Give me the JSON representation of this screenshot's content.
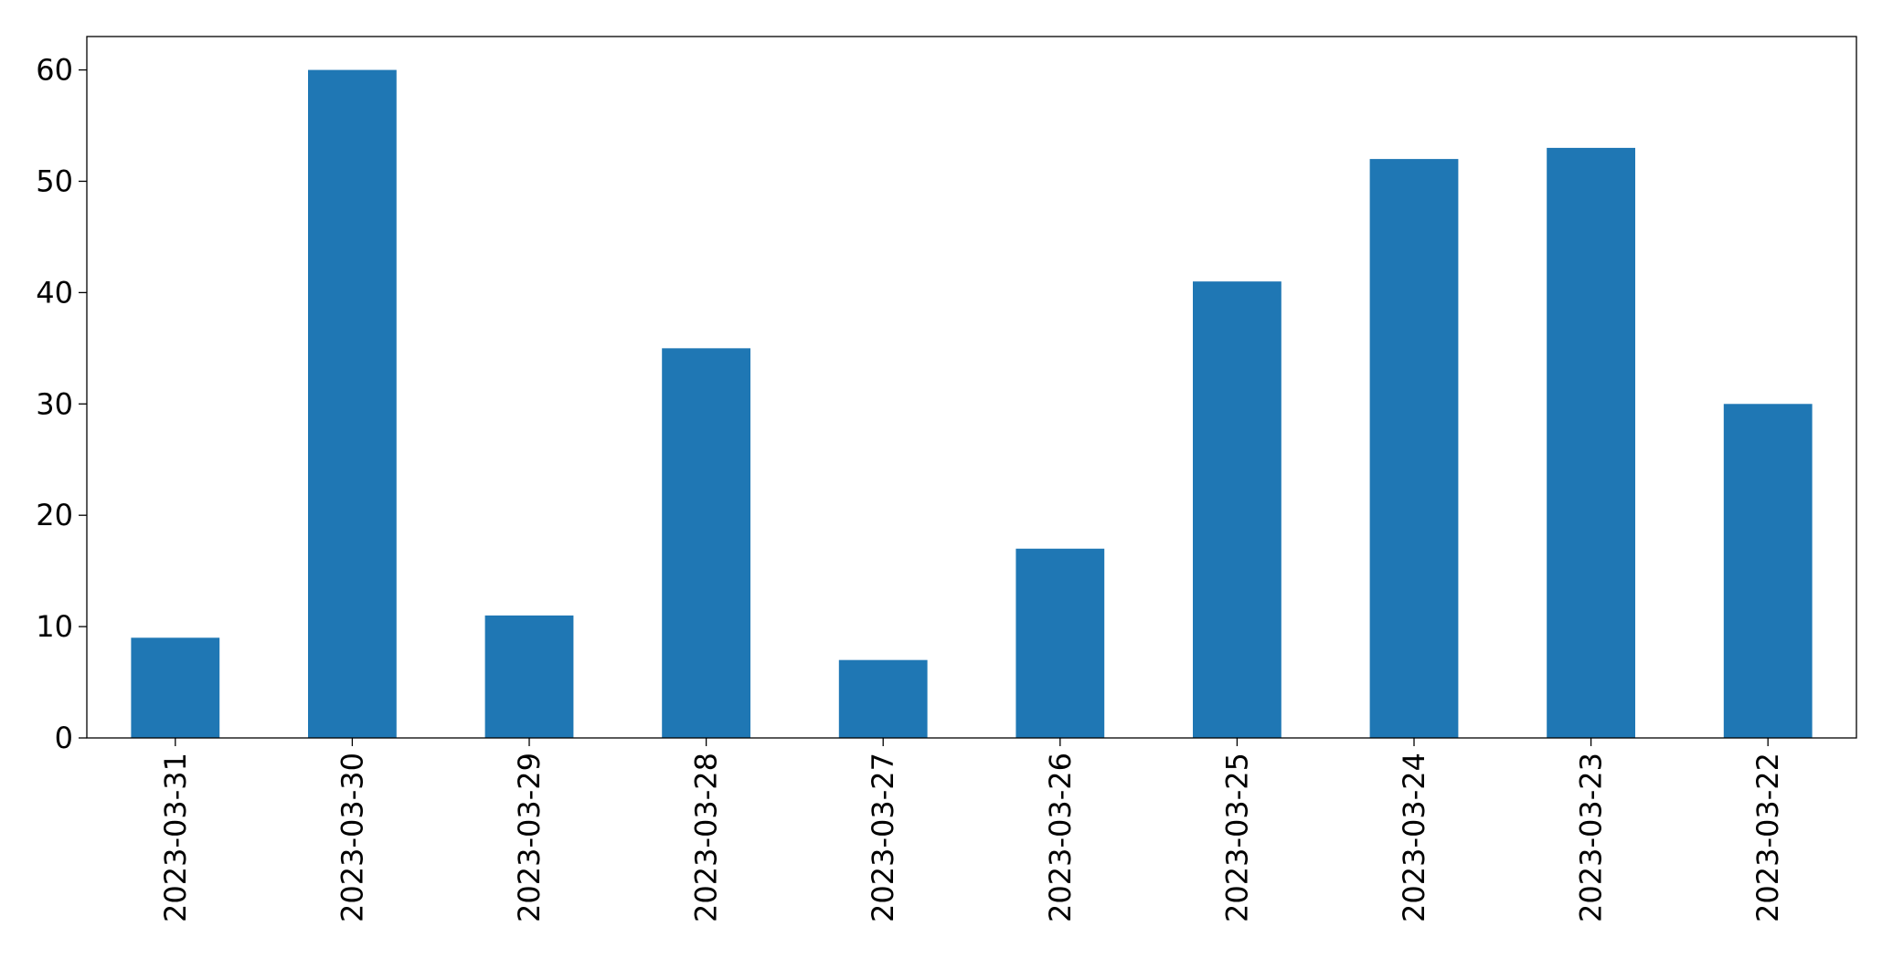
{
  "chart_data": {
    "type": "bar",
    "categories": [
      "2023-03-31",
      "2023-03-30",
      "2023-03-29",
      "2023-03-28",
      "2023-03-27",
      "2023-03-26",
      "2023-03-25",
      "2023-03-24",
      "2023-03-23",
      "2023-03-22"
    ],
    "values": [
      9,
      60,
      11,
      35,
      7,
      17,
      41,
      52,
      53,
      30
    ],
    "color": "#1f77b4",
    "ylim": [
      0,
      63
    ],
    "yticks": [
      0,
      10,
      20,
      30,
      40,
      50,
      60
    ],
    "grid": false
  }
}
